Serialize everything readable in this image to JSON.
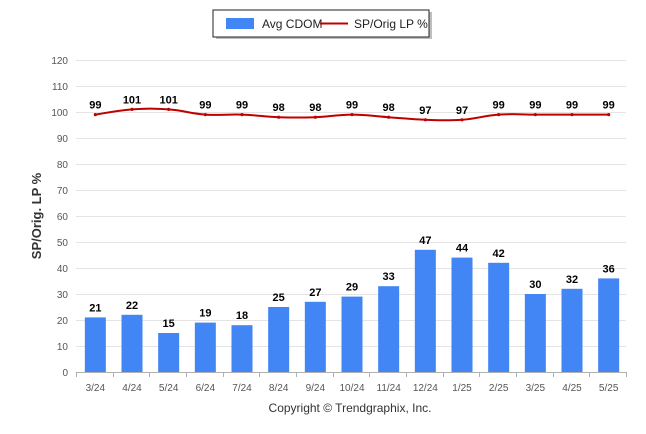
{
  "chart_data": {
    "type": "bar",
    "categories": [
      "3/24",
      "4/24",
      "5/24",
      "6/24",
      "7/24",
      "8/24",
      "9/24",
      "10/24",
      "11/24",
      "12/24",
      "1/25",
      "2/25",
      "3/25",
      "4/25",
      "5/25"
    ],
    "series": [
      {
        "name": "Avg CDOM",
        "type": "bar",
        "color": "#4285f4",
        "values": [
          21,
          22,
          15,
          19,
          18,
          25,
          27,
          29,
          33,
          47,
          44,
          42,
          30,
          32,
          36
        ]
      },
      {
        "name": "SP/Orig LP %",
        "type": "line",
        "color": "#c00000",
        "values": [
          99,
          101,
          101,
          99,
          99,
          98,
          98,
          99,
          98,
          97,
          97,
          99,
          99,
          99,
          99
        ]
      }
    ],
    "ylabel": "SP/Orig. LP %",
    "ylim": [
      0,
      120
    ],
    "yticks": [
      0,
      10,
      20,
      30,
      40,
      50,
      60,
      70,
      80,
      90,
      100,
      110,
      120
    ],
    "grid": true,
    "legend_position": "top-center"
  },
  "footer": {
    "copyright": "Copyright © Trendgraphix, Inc."
  }
}
